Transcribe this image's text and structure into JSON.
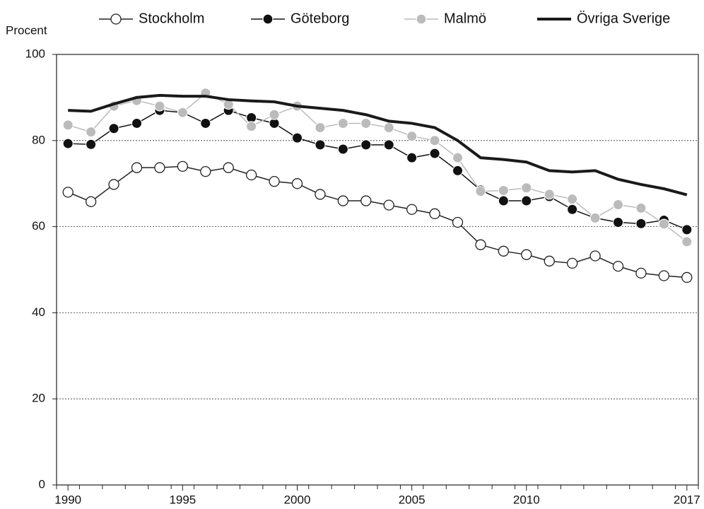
{
  "chart_data": {
    "type": "line",
    "y_label": "Procent",
    "x": [
      1990,
      1991,
      1992,
      1993,
      1994,
      1995,
      1996,
      1997,
      1998,
      1999,
      2000,
      2001,
      2002,
      2003,
      2004,
      2005,
      2006,
      2007,
      2008,
      2009,
      2010,
      2011,
      2012,
      2013,
      2014,
      2015,
      2016,
      2017
    ],
    "xlim": [
      1989.5,
      2017.5
    ],
    "xticks": [
      1990,
      1995,
      2000,
      2005,
      2010,
      2017
    ],
    "ylim": [
      0,
      100
    ],
    "yticks": [
      0,
      20,
      40,
      60,
      80,
      100
    ],
    "grid": true,
    "legend": "top",
    "series": [
      {
        "name": "Stockholm",
        "color": "#222222",
        "marker_fill": "#ffffff",
        "line_width": 1.5,
        "values": [
          68,
          65.8,
          69.8,
          73.7,
          73.7,
          74,
          72.8,
          73.7,
          72,
          70.5,
          70,
          67.5,
          66,
          66,
          65,
          64,
          63,
          61,
          55.8,
          54.3,
          53.5,
          52,
          51.5,
          53.2,
          50.8,
          49.2,
          48.6,
          48.2
        ]
      },
      {
        "name": "Göteborg",
        "color": "#111111",
        "marker_fill": "#111111",
        "line_width": 1.5,
        "values": [
          79.3,
          79.1,
          82.8,
          84,
          87,
          86.5,
          84,
          87,
          85.3,
          84,
          80.6,
          79,
          78,
          79,
          79,
          76,
          77,
          73,
          68.5,
          66,
          66,
          67,
          64,
          62,
          61,
          60.7,
          61.5,
          59.3
        ]
      },
      {
        "name": "Malmö",
        "color": "#bbbbbb",
        "marker_fill": "#bbbbbb",
        "line_width": 1.5,
        "values": [
          83.6,
          82,
          88,
          89.3,
          88,
          86.5,
          91,
          88.4,
          83.3,
          86,
          88,
          83,
          84,
          84,
          83,
          81,
          80,
          76,
          68.2,
          68.4,
          69,
          67.5,
          66.4,
          62,
          65.1,
          64.3,
          60.6,
          56.5
        ]
      },
      {
        "name": "Övriga Sverige",
        "color": "#1a1a1a",
        "line_width": 4,
        "values": [
          87,
          86.8,
          88.5,
          90,
          90.5,
          90.3,
          90.3,
          89.5,
          89.2,
          89,
          88,
          87.5,
          87,
          86,
          84.5,
          84,
          83,
          80,
          76,
          75.6,
          75,
          73,
          72.7,
          73,
          71,
          69.8,
          68.8,
          67.4
        ]
      }
    ]
  }
}
